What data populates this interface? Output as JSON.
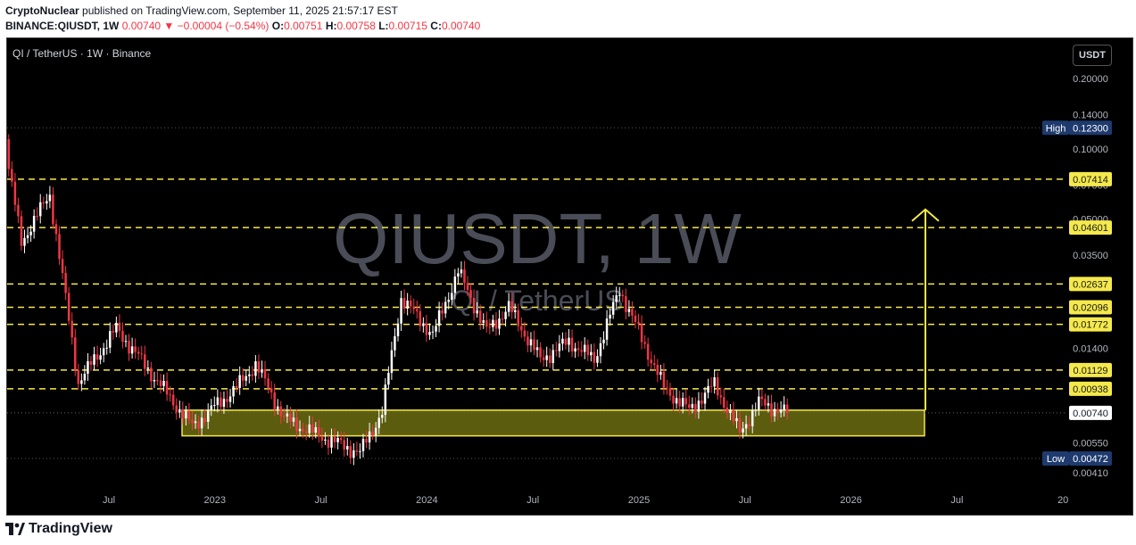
{
  "header": {
    "line1_user": "CryptoNuclear",
    "line1_text": " published on TradingView.com, September 11, 2025 21:57:17 EST",
    "symbol": "BINANCE:QIUSDT, 1W",
    "last": "0.00740",
    "change": "▼ −0.00004 (−0.54%)",
    "o_label": "O:",
    "o": "0.00751",
    "h_label": "H:",
    "h": "0.00758",
    "l_label": "L:",
    "l": "0.00715",
    "c_label": "C:",
    "c": "0.00740"
  },
  "legend": "QI / TetherUS · 1W · Binance",
  "watermark": {
    "symbol": "QIUSDT, 1W",
    "name": "QI / TetherUS"
  },
  "currency_button": "USDT",
  "footer": {
    "brand": "TradingView"
  },
  "colors": {
    "up": "#ffffff",
    "down": "#f23645",
    "level": "#f5e94b",
    "zone": "#6b6c10",
    "badge_dark": "#1e3a6e"
  },
  "chart_data": {
    "type": "candlestick",
    "scale": "log",
    "x_ticks": [
      "Jul",
      "2023",
      "Jul",
      "2024",
      "Jul",
      "2025",
      "Jul",
      "2026",
      "Jul",
      "20"
    ],
    "y_ticks": [
      "0.20000",
      "0.14000",
      "0.10000",
      "0.07000",
      "0.05000",
      "0.03500",
      "0.01400",
      "0.00550",
      "0.00410"
    ],
    "high": {
      "label": "High",
      "value": "0.12300"
    },
    "low": {
      "label": "Low",
      "value": "0.00472"
    },
    "current": "0.00740",
    "levels": [
      "0.07414",
      "0.04601",
      "0.02637",
      "0.02096",
      "0.01772",
      "0.01129",
      "0.00938"
    ],
    "support_zone": [
      0.0059,
      0.0076
    ],
    "target_arrow": {
      "from": 0.0076,
      "to": 0.055
    },
    "segments": [
      {
        "from": 0.098,
        "to": 0.04,
        "n": 5
      },
      {
        "from": 0.04,
        "to": 0.064,
        "n": 9
      },
      {
        "from": 0.064,
        "to": 0.01,
        "n": 9
      },
      {
        "from": 0.01,
        "to": 0.017,
        "n": 12
      },
      {
        "from": 0.017,
        "to": 0.0105,
        "n": 12
      },
      {
        "from": 0.0105,
        "to": 0.0065,
        "n": 12
      },
      {
        "from": 0.0065,
        "to": 0.0095,
        "n": 14
      },
      {
        "from": 0.0095,
        "to": 0.012,
        "n": 6
      },
      {
        "from": 0.012,
        "to": 0.007,
        "n": 9
      },
      {
        "from": 0.007,
        "to": 0.006,
        "n": 10
      },
      {
        "from": 0.006,
        "to": 0.005,
        "n": 14
      },
      {
        "from": 0.005,
        "to": 0.0075,
        "n": 7
      },
      {
        "from": 0.0075,
        "to": 0.023,
        "n": 6
      },
      {
        "from": 0.023,
        "to": 0.016,
        "n": 10
      },
      {
        "from": 0.016,
        "to": 0.03,
        "n": 8
      },
      {
        "from": 0.03,
        "to": 0.0165,
        "n": 9
      },
      {
        "from": 0.0165,
        "to": 0.021,
        "n": 7
      },
      {
        "from": 0.021,
        "to": 0.0125,
        "n": 10
      },
      {
        "from": 0.0125,
        "to": 0.015,
        "n": 9
      },
      {
        "from": 0.015,
        "to": 0.0125,
        "n": 8
      },
      {
        "from": 0.0125,
        "to": 0.025,
        "n": 8
      },
      {
        "from": 0.025,
        "to": 0.0095,
        "n": 14
      },
      {
        "from": 0.0095,
        "to": 0.0076,
        "n": 8
      },
      {
        "from": 0.0076,
        "to": 0.0098,
        "n": 8
      },
      {
        "from": 0.0098,
        "to": 0.0061,
        "n": 8
      },
      {
        "from": 0.0061,
        "to": 0.0082,
        "n": 6
      },
      {
        "from": 0.0082,
        "to": 0.0074,
        "n": 9
      }
    ]
  }
}
